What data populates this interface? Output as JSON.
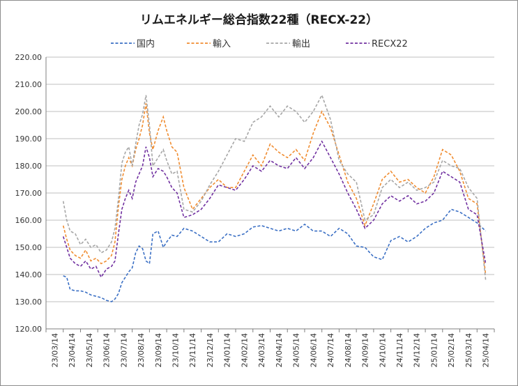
{
  "chart_data": {
    "type": "line",
    "title": "リムエネルギー総合指数22種（RECX-22）",
    "xlabel": "",
    "ylabel": "",
    "ylim": [
      120,
      220
    ],
    "yticks": [
      "120.00",
      "130.00",
      "140.00",
      "150.00",
      "160.00",
      "170.00",
      "180.00",
      "190.00",
      "200.00",
      "210.00",
      "220.00"
    ],
    "xticks": [
      "23/03/14",
      "23/04/14",
      "23/05/14",
      "23/06/14",
      "23/07/14",
      "23/08/14",
      "23/09/14",
      "23/10/14",
      "23/11/14",
      "23/12/14",
      "24/01/14",
      "24/02/14",
      "24/03/14",
      "24/04/14",
      "24/05/14",
      "24/06/14",
      "24/07/14",
      "24/08/14",
      "24/09/14",
      "24/10/14",
      "24/11/14",
      "24/12/14",
      "25/01/14",
      "25/02/14",
      "25/03/14",
      "25/04/14"
    ],
    "grid": "horizontal",
    "legend_position": "top",
    "series": [
      {
        "name": "国内",
        "color": "#3A6FC4",
        "x": [
          1.0,
          1.2,
          1.4,
          1.7,
          2.0,
          2.3,
          2.6,
          2.9,
          3.2,
          3.5,
          3.8,
          4.0,
          4.2,
          4.4,
          4.6,
          4.8,
          5.0,
          5.2,
          5.4,
          5.6,
          5.8,
          6.0,
          6.2,
          6.5,
          6.8,
          7.0,
          7.3,
          7.6,
          8.0,
          8.5,
          9.0,
          9.5,
          10.0,
          10.5,
          11.0,
          11.5,
          12.0,
          12.5,
          13.0,
          13.5,
          14.0,
          14.5,
          15.0,
          15.5,
          16.0,
          16.5,
          17.0,
          17.5,
          18.0,
          18.5,
          19.0,
          19.5,
          20.0,
          20.5,
          21.0,
          21.5,
          22.0,
          22.5,
          23.0,
          23.5,
          24.0,
          24.5,
          25.0,
          25.5
        ],
        "values": [
          139.5,
          139.0,
          134.5,
          134.0,
          134.0,
          133.5,
          132.5,
          132.0,
          131.5,
          130.5,
          130.0,
          131.0,
          133.0,
          137.0,
          139.0,
          141.0,
          142.5,
          148.0,
          150.5,
          149.5,
          145.0,
          144.0,
          155.0,
          156.0,
          150.0,
          152.0,
          154.5,
          154.0,
          157.0,
          156.0,
          154.0,
          152.0,
          152.0,
          155.0,
          154.0,
          155.0,
          157.5,
          158.0,
          157.0,
          156.0,
          157.0,
          156.0,
          158.5,
          156.0,
          156.0,
          154.0,
          157.0,
          155.0,
          150.5,
          150.0,
          146.5,
          145.5,
          152.5,
          154.0,
          152.0,
          154.0,
          157.0,
          159.0,
          160.0,
          164.0,
          163.0,
          161.0,
          159.0,
          156.0
        ]
      },
      {
        "name": "輸入",
        "color": "#F08C30",
        "x": [
          1.0,
          1.2,
          1.4,
          1.7,
          2.0,
          2.3,
          2.6,
          2.9,
          3.2,
          3.5,
          3.8,
          4.0,
          4.2,
          4.4,
          4.6,
          4.8,
          5.0,
          5.2,
          5.4,
          5.6,
          5.8,
          6.0,
          6.2,
          6.5,
          6.8,
          7.0,
          7.3,
          7.6,
          8.0,
          8.5,
          9.0,
          9.5,
          10.0,
          10.5,
          11.0,
          11.5,
          12.0,
          12.5,
          13.0,
          13.5,
          14.0,
          14.5,
          15.0,
          15.5,
          16.0,
          16.5,
          17.0,
          17.5,
          18.0,
          18.5,
          19.0,
          19.5,
          20.0,
          20.5,
          21.0,
          21.5,
          22.0,
          22.5,
          23.0,
          23.5,
          24.0,
          24.5,
          25.0,
          25.5
        ],
        "values": [
          158.0,
          153.0,
          149.0,
          147.0,
          146.0,
          149.0,
          145.0,
          146.0,
          144.0,
          145.0,
          147.0,
          152.0,
          165.0,
          175.0,
          180.0,
          183.0,
          180.0,
          186.0,
          190.0,
          195.0,
          203.0,
          192.0,
          186.0,
          193.0,
          198.0,
          193.0,
          187.0,
          185.0,
          172.0,
          164.0,
          168.0,
          172.0,
          175.0,
          172.0,
          172.0,
          178.0,
          184.0,
          180.0,
          188.0,
          185.0,
          183.0,
          186.0,
          182.0,
          192.0,
          200.0,
          194.0,
          184.0,
          174.0,
          168.0,
          158.0,
          166.0,
          175.0,
          178.0,
          174.0,
          175.0,
          172.0,
          170.0,
          176.0,
          186.0,
          184.0,
          178.0,
          168.0,
          166.0,
          140.0
        ]
      },
      {
        "name": "輸出",
        "color": "#A6A6A6",
        "x": [
          1.0,
          1.2,
          1.4,
          1.7,
          2.0,
          2.3,
          2.6,
          2.9,
          3.2,
          3.5,
          3.8,
          4.0,
          4.2,
          4.4,
          4.6,
          4.8,
          5.0,
          5.2,
          5.4,
          5.6,
          5.8,
          6.0,
          6.2,
          6.5,
          6.8,
          7.0,
          7.3,
          7.6,
          8.0,
          8.5,
          9.0,
          9.5,
          10.0,
          10.5,
          11.0,
          11.5,
          12.0,
          12.5,
          13.0,
          13.5,
          14.0,
          14.5,
          15.0,
          15.5,
          16.0,
          16.5,
          17.0,
          17.5,
          18.0,
          18.5,
          19.0,
          19.5,
          20.0,
          20.5,
          21.0,
          21.5,
          22.0,
          22.5,
          23.0,
          23.5,
          24.0,
          24.5,
          25.0,
          25.5
        ],
        "values": [
          167.0,
          160.0,
          156.0,
          155.0,
          151.0,
          153.0,
          150.0,
          151.0,
          148.0,
          149.0,
          152.0,
          157.0,
          168.0,
          181.0,
          185.0,
          187.0,
          180.0,
          188.0,
          195.0,
          199.0,
          206.0,
          195.0,
          180.0,
          183.0,
          186.0,
          182.0,
          177.0,
          178.0,
          164.0,
          163.0,
          167.0,
          173.0,
          178.0,
          184.0,
          190.0,
          189.0,
          196.0,
          198.0,
          202.0,
          198.0,
          202.0,
          200.0,
          196.0,
          200.0,
          206.0,
          197.0,
          182.0,
          177.0,
          174.0,
          160.0,
          162.0,
          172.0,
          175.0,
          172.0,
          174.0,
          171.0,
          172.0,
          174.0,
          182.0,
          180.0,
          179.0,
          172.0,
          168.0,
          138.0
        ]
      },
      {
        "name": "RECX22",
        "color": "#7030A0",
        "x": [
          1.0,
          1.2,
          1.4,
          1.7,
          2.0,
          2.3,
          2.6,
          2.9,
          3.2,
          3.5,
          3.8,
          4.0,
          4.2,
          4.4,
          4.6,
          4.8,
          5.0,
          5.2,
          5.4,
          5.6,
          5.8,
          6.0,
          6.2,
          6.5,
          6.8,
          7.0,
          7.3,
          7.6,
          8.0,
          8.5,
          9.0,
          9.5,
          10.0,
          10.5,
          11.0,
          11.5,
          12.0,
          12.5,
          13.0,
          13.5,
          14.0,
          14.5,
          15.0,
          15.5,
          16.0,
          16.5,
          17.0,
          17.5,
          18.0,
          18.5,
          19.0,
          19.5,
          20.0,
          20.5,
          21.0,
          21.5,
          22.0,
          22.5,
          23.0,
          23.5,
          24.0,
          24.5,
          25.0,
          25.5
        ],
        "values": [
          154.0,
          150.0,
          146.0,
          144.0,
          143.0,
          145.0,
          142.0,
          143.0,
          139.0,
          142.0,
          143.0,
          145.0,
          155.0,
          164.0,
          168.0,
          171.0,
          168.0,
          174.0,
          177.0,
          180.0,
          187.0,
          183.0,
          176.0,
          179.0,
          178.0,
          176.0,
          172.0,
          170.0,
          161.0,
          162.0,
          164.0,
          168.0,
          173.0,
          172.0,
          171.0,
          175.0,
          180.0,
          178.0,
          182.0,
          180.0,
          179.0,
          183.0,
          179.0,
          183.0,
          189.0,
          183.0,
          177.0,
          170.0,
          164.0,
          157.0,
          160.0,
          166.0,
          169.0,
          167.0,
          169.0,
          166.0,
          167.0,
          170.0,
          178.0,
          176.0,
          174.0,
          164.0,
          162.0,
          144.0
        ]
      }
    ]
  }
}
